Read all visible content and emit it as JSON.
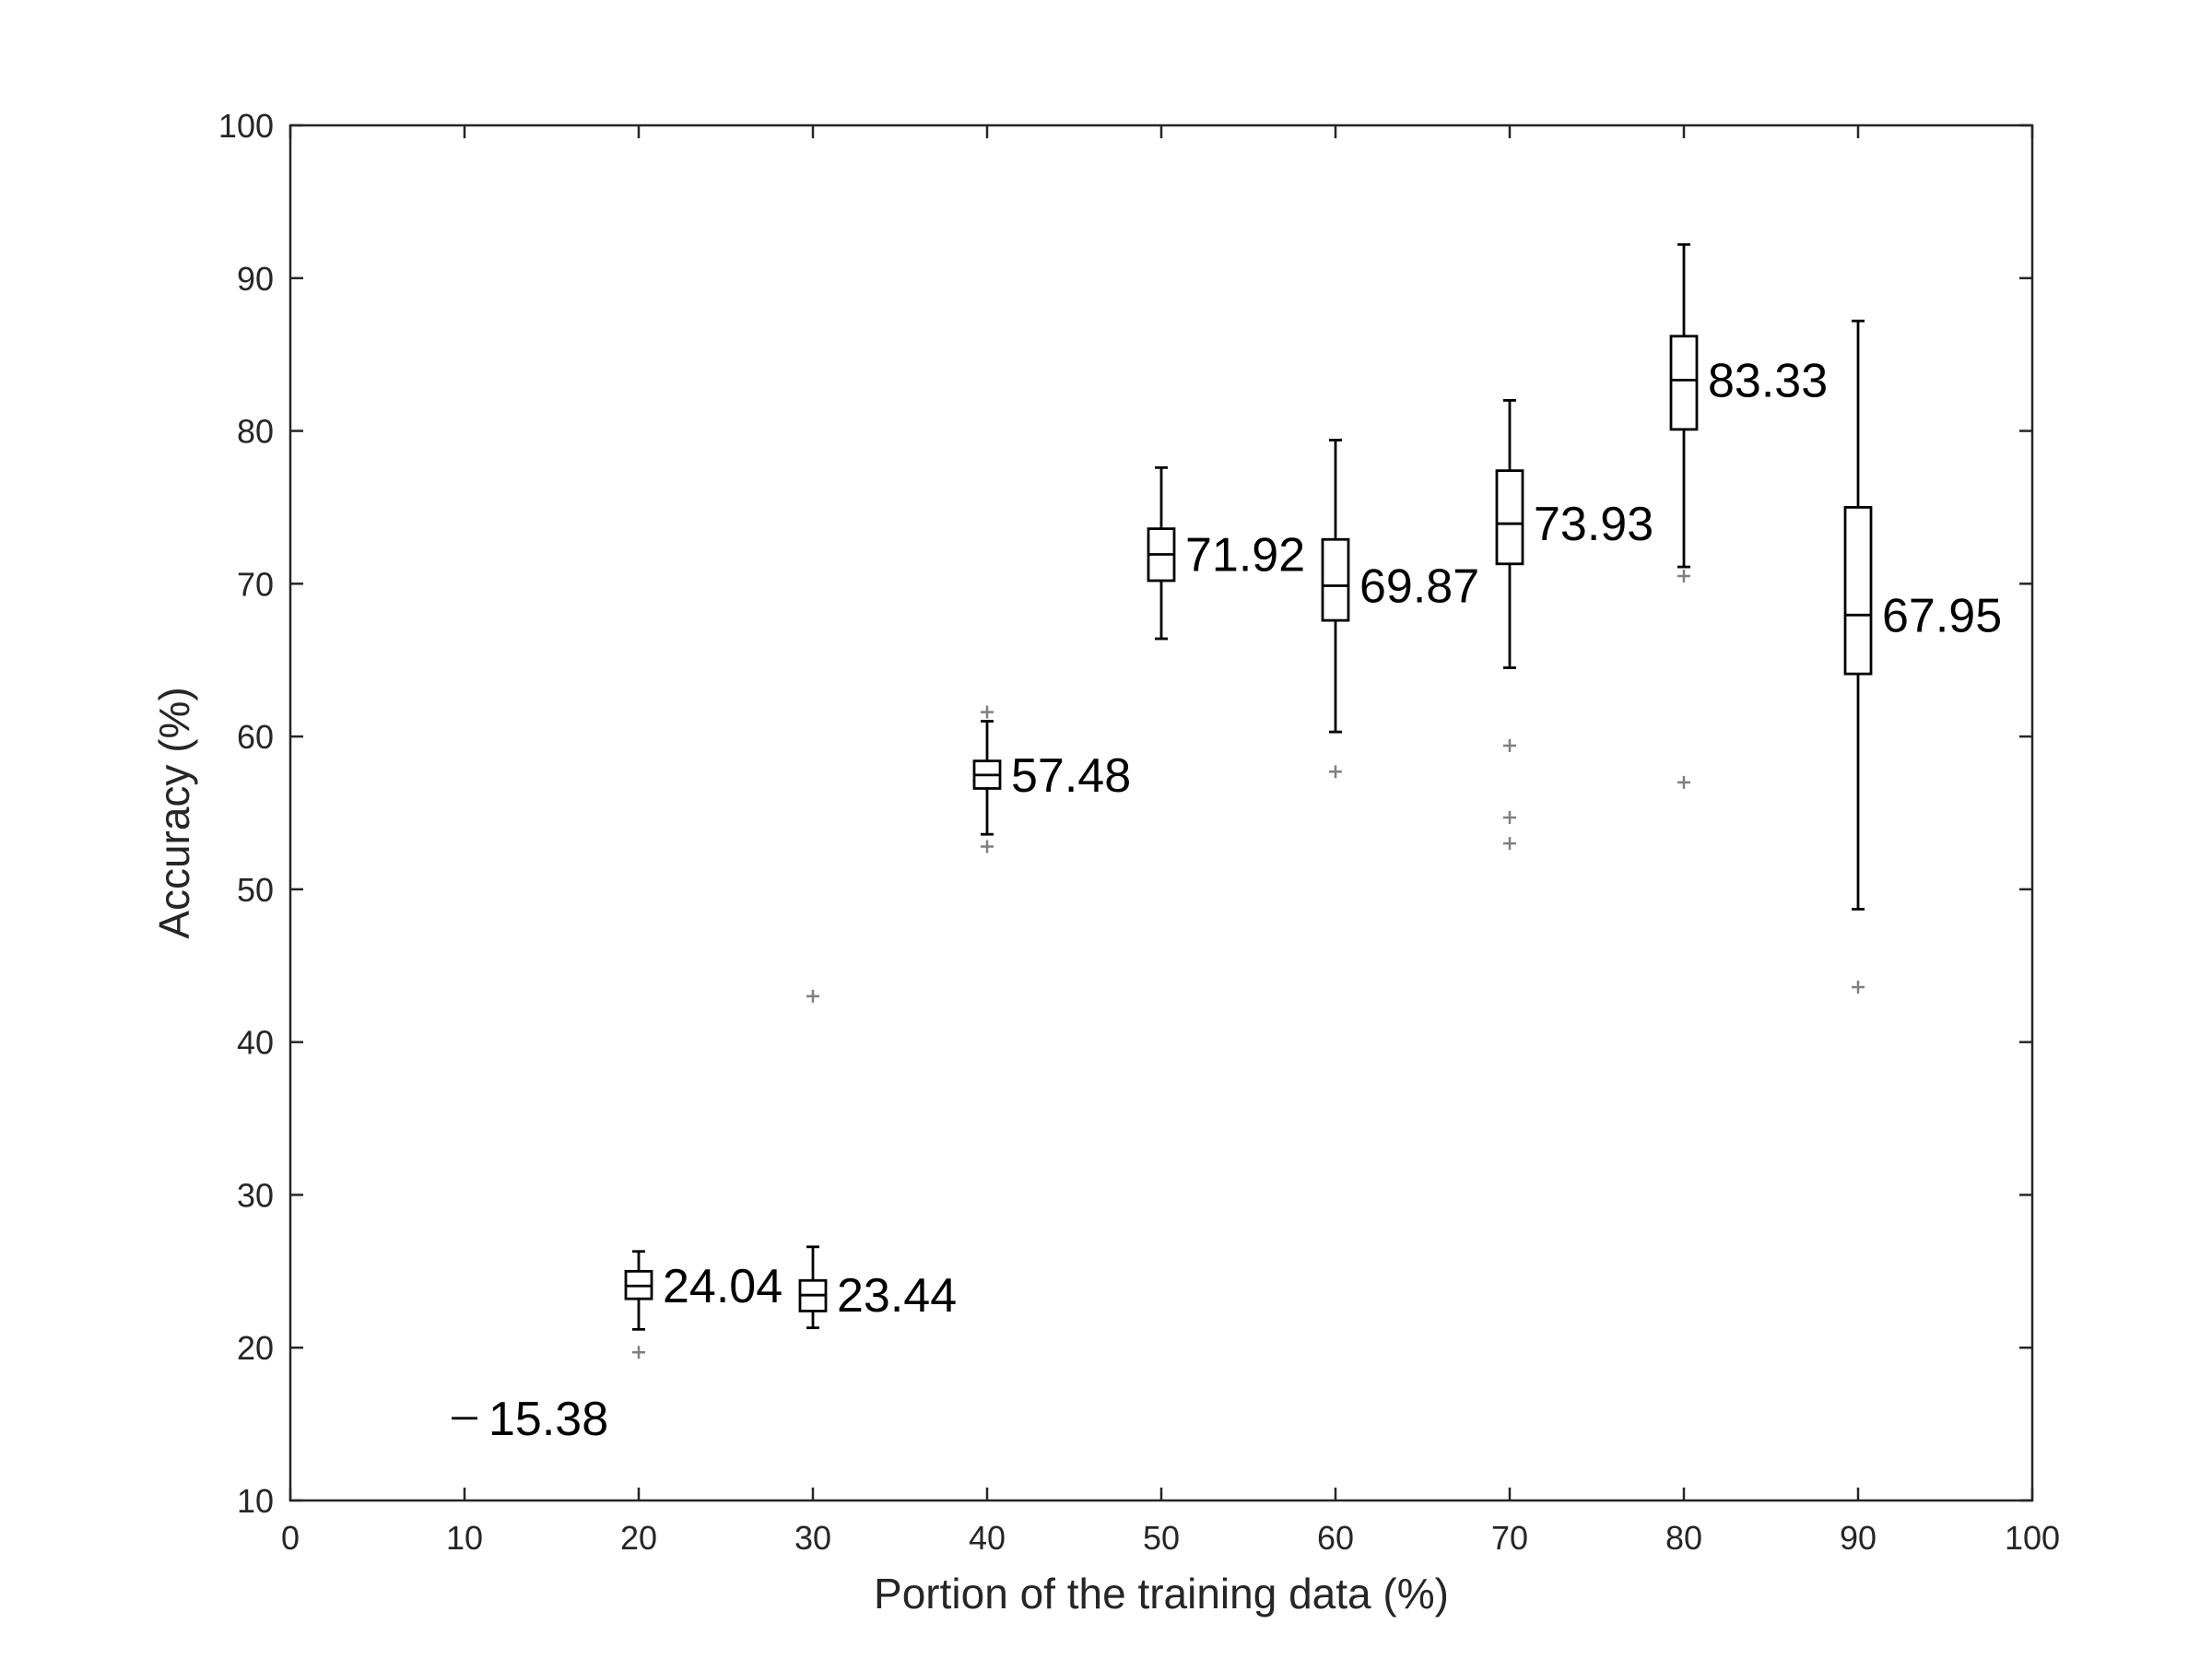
{
  "chart_data": {
    "type": "box",
    "xlabel": "Portion of the training data (%)",
    "ylabel": "Accuracy (%)",
    "xlim": [
      0,
      100
    ],
    "ylim": [
      10,
      100
    ],
    "xticks": [
      0,
      10,
      20,
      30,
      40,
      50,
      60,
      70,
      80,
      90,
      100
    ],
    "yticks": [
      10,
      20,
      30,
      40,
      50,
      60,
      70,
      80,
      90,
      100
    ],
    "grid": false,
    "colors": {
      "box": "#000000",
      "outlier": "#808080",
      "axis": "#262626"
    },
    "boxes": [
      {
        "x": 10,
        "median": 15.38,
        "median_label": "15.38",
        "q1": 15.38,
        "q3": 15.38,
        "whisker_low": 15.38,
        "whisker_high": 15.38,
        "outliers": []
      },
      {
        "x": 20,
        "median": 24.04,
        "median_label": "24.04",
        "q1": 23.2,
        "q3": 25.0,
        "whisker_low": 21.2,
        "whisker_high": 26.3,
        "outliers": [
          19.7
        ]
      },
      {
        "x": 30,
        "median": 23.44,
        "median_label": "23.44",
        "q1": 22.4,
        "q3": 24.4,
        "whisker_low": 21.3,
        "whisker_high": 26.6,
        "outliers": [
          43.0
        ]
      },
      {
        "x": 40,
        "median": 57.48,
        "median_label": "57.48",
        "q1": 56.6,
        "q3": 58.4,
        "whisker_low": 53.6,
        "whisker_high": 61.0,
        "outliers": [
          52.8,
          61.6
        ]
      },
      {
        "x": 50,
        "median": 71.92,
        "median_label": "71.92",
        "q1": 70.2,
        "q3": 73.6,
        "whisker_low": 66.4,
        "whisker_high": 77.6,
        "outliers": []
      },
      {
        "x": 60,
        "median": 69.87,
        "median_label": "69.87",
        "q1": 67.6,
        "q3": 72.9,
        "whisker_low": 60.3,
        "whisker_high": 79.4,
        "outliers": [
          57.7
        ]
      },
      {
        "x": 70,
        "median": 73.93,
        "median_label": "73.93",
        "q1": 71.3,
        "q3": 77.4,
        "whisker_low": 64.5,
        "whisker_high": 82.0,
        "outliers": [
          59.4,
          54.7,
          53.0
        ]
      },
      {
        "x": 80,
        "median": 83.33,
        "median_label": "83.33",
        "q1": 80.1,
        "q3": 86.2,
        "whisker_low": 71.1,
        "whisker_high": 92.2,
        "outliers": [
          70.5,
          57.0
        ]
      },
      {
        "x": 90,
        "median": 67.95,
        "median_label": "67.95",
        "q1": 64.1,
        "q3": 75.0,
        "whisker_low": 48.7,
        "whisker_high": 87.2,
        "outliers": [
          43.6
        ]
      }
    ]
  }
}
